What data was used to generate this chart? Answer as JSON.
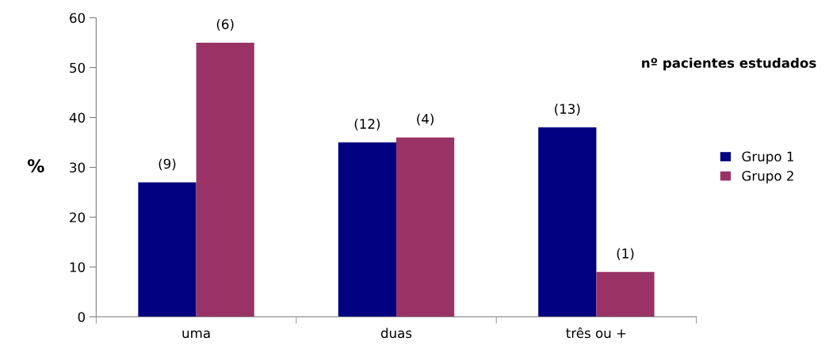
{
  "chart_data": {
    "type": "bar",
    "ylabel": "%",
    "categories": [
      "uma",
      "duas",
      "três ou +"
    ],
    "series": [
      {
        "name": "Grupo 1",
        "color": "#000080",
        "values": [
          27,
          35,
          38
        ]
      },
      {
        "name": "Grupo 2",
        "color": "#993366",
        "values": [
          55,
          36,
          9
        ]
      }
    ],
    "ylim": [
      0,
      60
    ],
    "yticks": [
      0,
      10,
      20,
      30,
      40,
      50,
      60
    ],
    "grid": false,
    "legend": "right",
    "annotations": [
      "nº pacientes estudados",
      {
        "text": "(9)",
        "x": "uma",
        "y": 27
      },
      {
        "text": "(12)",
        "x": "duas",
        "y": 35
      },
      {
        "text": "(13)",
        "x": "três ou +",
        "y": 38
      },
      {
        "text": "(6)",
        "x": "uma",
        "y": 55
      },
      {
        "text": "(4)",
        "x": "duas",
        "y": 36
      },
      {
        "text": "(1)",
        "x": "três ou +",
        "y": 9
      }
    ]
  }
}
